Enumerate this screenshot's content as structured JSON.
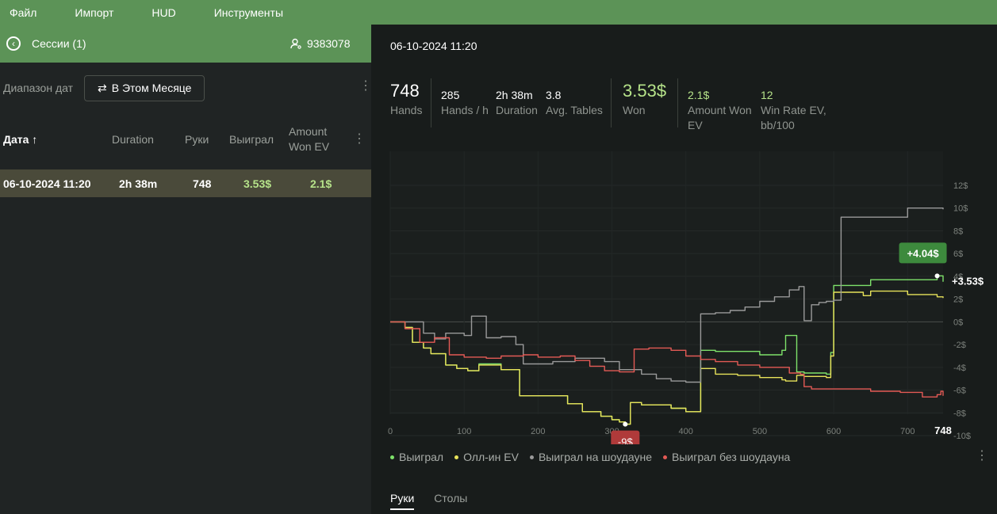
{
  "menu": [
    "Файл",
    "Импорт",
    "HUD",
    "Инструменты"
  ],
  "left": {
    "sessions_title": "Сессии (1)",
    "user_id": "9383078",
    "filter_label": "Диапазон дат",
    "filter_button": "В Этом Месяце",
    "columns": {
      "date": "Дата ↑",
      "duration": "Duration",
      "hands": "Руки",
      "won": "Выиграл",
      "amount_won_ev_1": "Amount",
      "amount_won_ev_2": "Won EV"
    },
    "rows": [
      {
        "date": "06-10-2024 11:20",
        "duration": "2h 38m",
        "hands": "748",
        "won": "3.53$",
        "ev": "2.1$"
      }
    ]
  },
  "right": {
    "title": "06-10-2024 11:20",
    "stats": {
      "hands": {
        "value": "748",
        "label": "Hands"
      },
      "hands_per_hour": {
        "value": "285",
        "label": "Hands / h"
      },
      "duration": {
        "value": "2h 38m",
        "label": "Duration"
      },
      "avg_tables": {
        "value": "3.8",
        "label": "Avg. Tables"
      },
      "won": {
        "value": "3.53$",
        "label": "Won"
      },
      "amount_won_ev": {
        "value": "2.1$",
        "label_1": "Amount Won",
        "label_2": "EV"
      },
      "win_rate_ev": {
        "value": "12",
        "label_1": "Win Rate EV,",
        "label_2": "bb/100"
      }
    },
    "tabs": [
      "Руки",
      "Столы"
    ]
  },
  "colors": {
    "accent": "#5c9357",
    "won": "#7ee26a",
    "allin_ev": "#e8e35a",
    "showdown": "#9a9a9a",
    "no_showdown": "#e45a55"
  },
  "chart_data": {
    "type": "line",
    "xlim": [
      0,
      748
    ],
    "ylim": [
      -10,
      12
    ],
    "x_ticks": [
      "0",
      "100",
      "200",
      "300",
      "400",
      "500",
      "600",
      "700"
    ],
    "x_end_label": "748",
    "y_ticks": [
      "12$",
      "10$",
      "8$",
      "6$",
      "4$",
      "2$",
      "0$",
      "-2$",
      "-4$",
      "-6$",
      "-8$",
      "-10$"
    ],
    "max_label": "+4.04$",
    "min_label": "-9$",
    "end_label": "+3.53$",
    "series": [
      {
        "name": "Выиграл",
        "color": "#7ee26a",
        "x": [
          0,
          20,
          30,
          45,
          55,
          75,
          90,
          105,
          120,
          150,
          170,
          175,
          200,
          240,
          260,
          285,
          300,
          310,
          318,
          325,
          340,
          380,
          400,
          415,
          420,
          440,
          470,
          500,
          530,
          535,
          550,
          560,
          590,
          596,
          600,
          640,
          650,
          700,
          740,
          748
        ],
        "y": [
          0,
          -0.5,
          -1.8,
          -2.3,
          -2.8,
          -3.8,
          -4.1,
          -4.3,
          -3.7,
          -4.2,
          -4.2,
          -6.5,
          -6.5,
          -7.2,
          -7.9,
          -8.3,
          -8.6,
          -8.8,
          -9.0,
          -7.1,
          -7.3,
          -7.6,
          -7.9,
          -7.9,
          -2.5,
          -2.6,
          -2.6,
          -2.9,
          -2.5,
          -1.2,
          -4.4,
          -4.5,
          -4.6,
          -2.7,
          3.2,
          3.2,
          3.7,
          3.7,
          4.04,
          3.53
        ]
      },
      {
        "name": "Олл-ин EV",
        "color": "#e8e35a",
        "x": [
          0,
          20,
          30,
          45,
          55,
          75,
          90,
          105,
          120,
          150,
          170,
          175,
          200,
          240,
          260,
          285,
          300,
          310,
          318,
          325,
          340,
          380,
          400,
          415,
          420,
          440,
          470,
          500,
          530,
          535,
          550,
          560,
          590,
          596,
          600,
          640,
          650,
          700,
          740,
          748
        ],
        "y": [
          0,
          -0.5,
          -1.8,
          -2.3,
          -2.8,
          -3.8,
          -4.1,
          -4.3,
          -3.8,
          -4.2,
          -4.2,
          -6.5,
          -6.5,
          -7.2,
          -7.9,
          -8.3,
          -8.6,
          -8.8,
          -9.0,
          -7.1,
          -7.3,
          -7.6,
          -7.9,
          -7.9,
          -4.1,
          -4.6,
          -4.7,
          -4.9,
          -5.1,
          -5.2,
          -4.7,
          -4.8,
          -4.9,
          -3.0,
          2.6,
          2.3,
          2.7,
          2.4,
          2.2,
          2.1
        ]
      },
      {
        "name": "Выиграл на шоудауне",
        "color": "#9a9a9a",
        "x": [
          0,
          30,
          45,
          60,
          75,
          100,
          110,
          130,
          150,
          170,
          180,
          220,
          250,
          290,
          310,
          340,
          360,
          380,
          400,
          415,
          420,
          440,
          460,
          480,
          500,
          520,
          540,
          553,
          560,
          570,
          580,
          590,
          600,
          610,
          650,
          700,
          748
        ],
        "y": [
          0,
          0,
          -1.0,
          -1.5,
          -1.0,
          -1.2,
          0.5,
          -1.4,
          -1.3,
          -2.0,
          -3.7,
          -3.5,
          -3.2,
          -3.5,
          -4.2,
          -4.6,
          -5.0,
          -5.2,
          -5.3,
          -5.3,
          0.7,
          0.8,
          1.0,
          1.3,
          1.8,
          2.2,
          2.8,
          3.1,
          0.1,
          1.5,
          1.7,
          1.8,
          1.9,
          9.2,
          9.2,
          10.0,
          9.9
        ]
      },
      {
        "name": "Выиграл без шоудауна",
        "color": "#e45a55",
        "x": [
          0,
          20,
          40,
          60,
          80,
          100,
          130,
          150,
          180,
          200,
          230,
          250,
          270,
          290,
          310,
          330,
          350,
          380,
          400,
          410,
          420,
          440,
          470,
          500,
          540,
          555,
          560,
          570,
          600,
          650,
          690,
          720,
          740,
          745,
          748
        ],
        "y": [
          0,
          -0.6,
          -1.8,
          -1.4,
          -2.9,
          -3.1,
          -3.2,
          -3.0,
          -2.9,
          -3.1,
          -3.0,
          -3.4,
          -3.9,
          -4.3,
          -4.4,
          -2.4,
          -2.3,
          -2.5,
          -3.0,
          -3.0,
          -3.3,
          -3.5,
          -3.8,
          -4.0,
          -4.5,
          -4.6,
          -5.7,
          -5.9,
          -5.9,
          -6.1,
          -6.2,
          -6.6,
          -6.4,
          -6.1,
          -6.5
        ]
      }
    ]
  }
}
